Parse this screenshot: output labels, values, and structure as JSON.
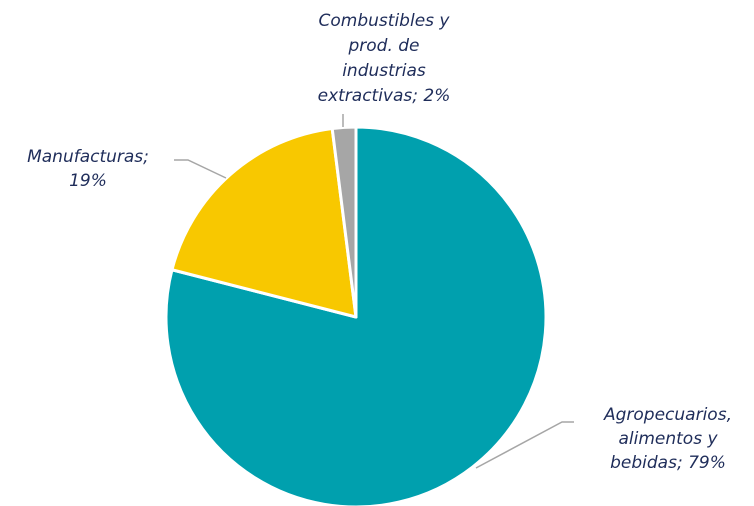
{
  "chart_data": {
    "type": "pie",
    "title": "",
    "colors": {
      "Agropecuarios, alimentos y bebidas": "#00A0AE",
      "Manufacturas": "#F8C800",
      "Combustibles y prod. de industrias extractivas": "#A6A6A6"
    },
    "series": [
      {
        "name": "Agropecuarios, alimentos y bebidas",
        "value": 79,
        "label_lines": [
          "Agropecuarios,",
          "alimentos y",
          "bebidas; 79%"
        ]
      },
      {
        "name": "Manufacturas",
        "value": 19,
        "label_lines": [
          "Manufacturas;",
          "19%"
        ]
      },
      {
        "name": "Combustibles y prod. de industrias extractivas",
        "value": 2,
        "label_lines": [
          "Combustibles y",
          "prod. de",
          "industrias",
          "extractivas; 2%"
        ]
      }
    ],
    "leader_line_color": "#A6A6A6"
  }
}
